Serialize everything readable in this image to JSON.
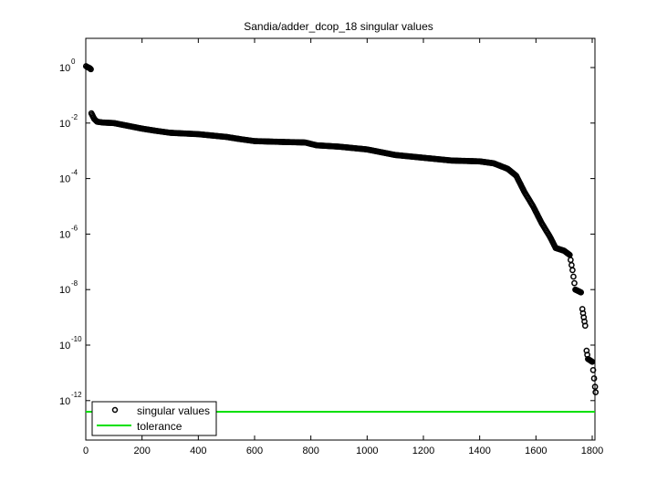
{
  "chart_data": {
    "type": "scatter",
    "title": "Sandia/adder_dcop_18 singular values",
    "xlabel": "",
    "ylabel": "",
    "xlim": [
      0,
      1813
    ],
    "ylim_log10": [
      -13.5,
      1.1
    ],
    "yscale": "log",
    "grid": false,
    "legend_position": "lower-left",
    "x_ticks": [
      0,
      200,
      400,
      600,
      800,
      1000,
      1200,
      1400,
      1600,
      1800
    ],
    "y_ticks": [
      "10^0",
      "10^-2",
      "10^-4",
      "10^-6",
      "10^-8",
      "10^-10",
      "10^-12"
    ],
    "y_tick_exponents": [
      0,
      -2,
      -4,
      -6,
      -8,
      -10,
      -12
    ],
    "series": [
      {
        "name": "singular values",
        "marker": "circle-open",
        "color": "#000000",
        "points_log10": [
          [
            1,
            0.05
          ],
          [
            5,
            0.02
          ],
          [
            10,
            0.0
          ],
          [
            15,
            -0.03
          ],
          [
            18,
            -0.06
          ],
          [
            20,
            -1.65
          ],
          [
            25,
            -1.75
          ],
          [
            30,
            -1.85
          ],
          [
            40,
            -1.95
          ],
          [
            60,
            -1.98
          ],
          [
            100,
            -2.0
          ],
          [
            150,
            -2.1
          ],
          [
            200,
            -2.2
          ],
          [
            250,
            -2.28
          ],
          [
            300,
            -2.35
          ],
          [
            400,
            -2.4
          ],
          [
            500,
            -2.5
          ],
          [
            550,
            -2.58
          ],
          [
            600,
            -2.65
          ],
          [
            700,
            -2.68
          ],
          [
            780,
            -2.7
          ],
          [
            820,
            -2.8
          ],
          [
            900,
            -2.85
          ],
          [
            1000,
            -2.95
          ],
          [
            1050,
            -3.05
          ],
          [
            1100,
            -3.15
          ],
          [
            1200,
            -3.25
          ],
          [
            1300,
            -3.35
          ],
          [
            1400,
            -3.38
          ],
          [
            1450,
            -3.45
          ],
          [
            1500,
            -3.65
          ],
          [
            1530,
            -3.9
          ],
          [
            1560,
            -4.5
          ],
          [
            1590,
            -5.0
          ],
          [
            1620,
            -5.6
          ],
          [
            1650,
            -6.1
          ],
          [
            1670,
            -6.5
          ],
          [
            1700,
            -6.6
          ],
          [
            1720,
            -6.75
          ],
          [
            1730,
            -7.3
          ],
          [
            1740,
            -8.0
          ],
          [
            1760,
            -8.1
          ],
          [
            1765,
            -8.7
          ],
          [
            1770,
            -9.0
          ],
          [
            1775,
            -9.3
          ],
          [
            1780,
            -10.2
          ],
          [
            1785,
            -10.5
          ],
          [
            1800,
            -10.6
          ],
          [
            1810,
            -11.5
          ],
          [
            1812,
            -11.7
          ]
        ]
      },
      {
        "name": "tolerance",
        "color": "#00e000",
        "line_log10": -12.4
      }
    ]
  },
  "legend": {
    "items": [
      {
        "label": "singular values"
      },
      {
        "label": "tolerance"
      }
    ]
  }
}
